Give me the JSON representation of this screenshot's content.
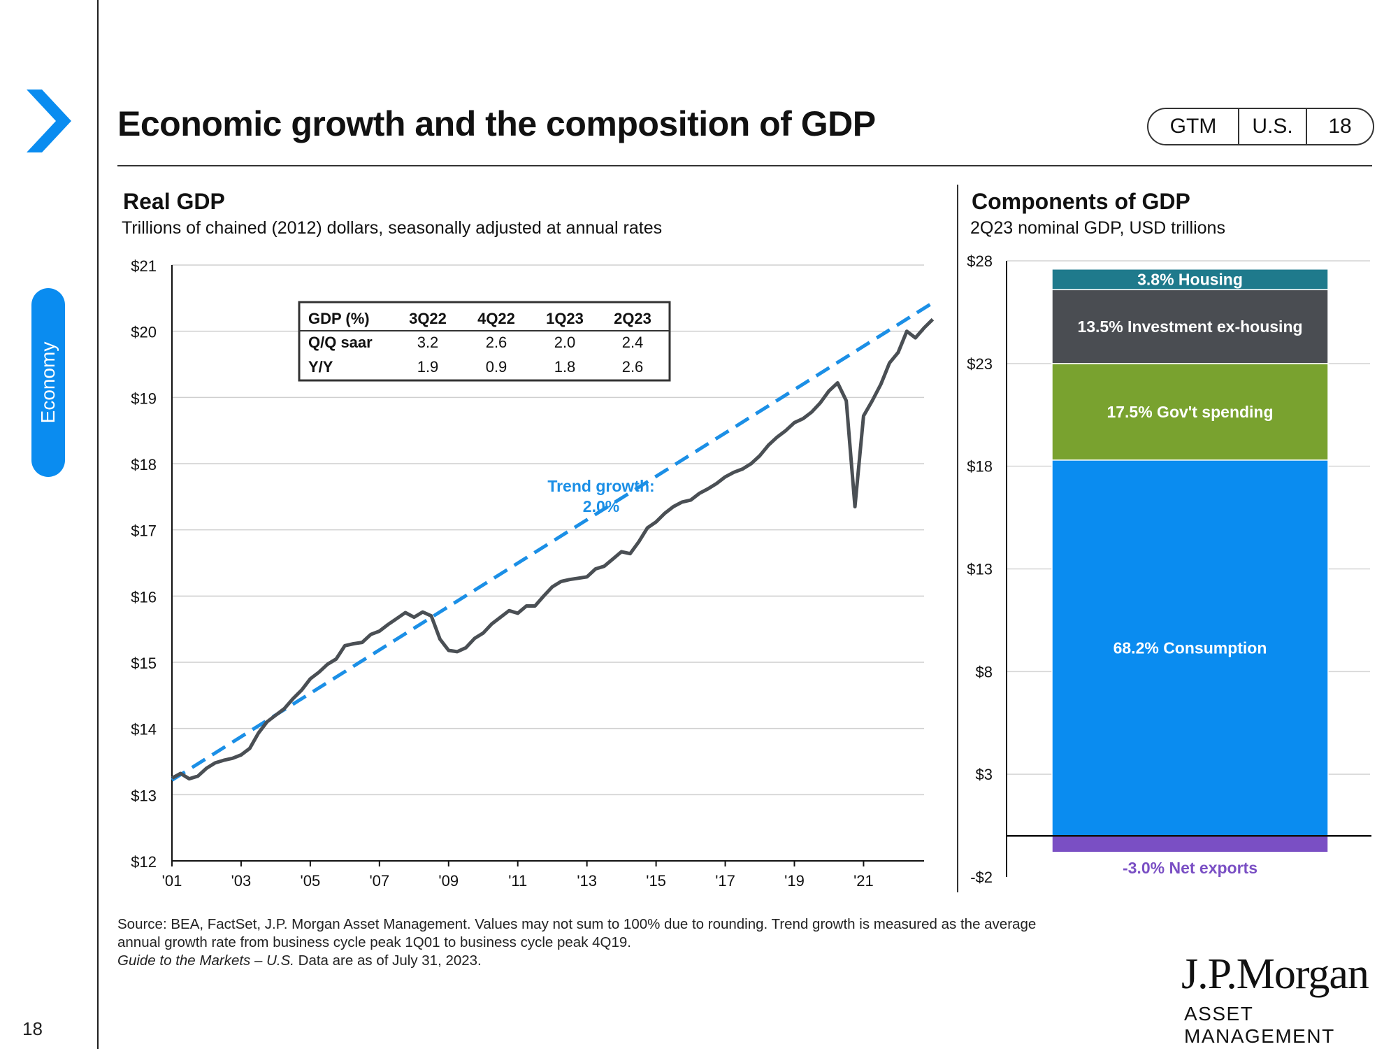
{
  "header": {
    "title": "Economic growth and the composition of GDP",
    "tags": [
      "GTM",
      "U.S.",
      "18"
    ]
  },
  "sidebar": {
    "section": "Economy",
    "page_number": "18"
  },
  "left_chart": {
    "title": "Real GDP",
    "subtitle": "Trillions of chained (2012) dollars, seasonally adjusted at annual rates"
  },
  "right_chart": {
    "title": "Components of GDP",
    "subtitle": "2Q23 nominal GDP, USD trillions"
  },
  "gdp_table": {
    "headers": [
      "GDP (%)",
      "3Q22",
      "4Q22",
      "1Q23",
      "2Q23"
    ],
    "rows": [
      {
        "label": "Q/Q saar",
        "values": [
          "3.2",
          "2.6",
          "2.0",
          "2.4"
        ]
      },
      {
        "label": "Y/Y",
        "values": [
          "1.9",
          "0.9",
          "1.8",
          "2.6"
        ]
      }
    ]
  },
  "trend_label": [
    "Trend growth:",
    "2.0%"
  ],
  "source": {
    "line1": "Source: BEA, FactSet, J.P. Morgan Asset Management. Values may not sum to 100% due to rounding. Trend growth is measured as the average",
    "line2": "annual growth rate from business cycle peak 1Q01 to business cycle peak 4Q19.",
    "line3_italic": "Guide to the Markets – U.S.",
    "line3_rest": " Data are as of July 31, 2023."
  },
  "brand": {
    "name": "J.P.Morgan",
    "sub": "ASSET MANAGEMENT"
  },
  "colors": {
    "accent": "#0a8cf0",
    "line": "#4a4f54",
    "trend": "#1b8fe6",
    "housing": "#1f7a8c",
    "investment": "#4a4d52",
    "government": "#79a22f",
    "consumption": "#0a8cf0",
    "net_exports": "#7a4fc4"
  },
  "chart_data": [
    {
      "type": "line",
      "title": "Real GDP",
      "ylabel": "Trillions of chained (2012) dollars, seasonally adjusted at annual rates",
      "ylim": [
        12,
        21
      ],
      "yticks": [
        12,
        13,
        14,
        15,
        16,
        17,
        18,
        19,
        20,
        21
      ],
      "ytick_labels": [
        "$12",
        "$13",
        "$14",
        "$15",
        "$16",
        "$17",
        "$18",
        "$19",
        "$20",
        "$21"
      ],
      "xlim": [
        2001,
        2022.75
      ],
      "xticks": [
        2001,
        2003,
        2005,
        2007,
        2009,
        2011,
        2013,
        2015,
        2017,
        2019,
        2021
      ],
      "xtick_labels": [
        "'01",
        "'03",
        "'05",
        "'07",
        "'09",
        "'11",
        "'13",
        "'15",
        "'17",
        "'19",
        "'21"
      ],
      "grid": true,
      "series": [
        {
          "name": "Real GDP",
          "points": [
            [
              2001.0,
              13.25
            ],
            [
              2001.25,
              13.32
            ],
            [
              2001.5,
              13.24
            ],
            [
              2001.75,
              13.28
            ],
            [
              2002.0,
              13.4
            ],
            [
              2002.25,
              13.48
            ],
            [
              2002.5,
              13.52
            ],
            [
              2002.75,
              13.55
            ],
            [
              2003.0,
              13.6
            ],
            [
              2003.25,
              13.7
            ],
            [
              2003.5,
              13.93
            ],
            [
              2003.75,
              14.1
            ],
            [
              2004.0,
              14.2
            ],
            [
              2004.25,
              14.3
            ],
            [
              2004.5,
              14.45
            ],
            [
              2004.75,
              14.58
            ],
            [
              2005.0,
              14.75
            ],
            [
              2005.25,
              14.85
            ],
            [
              2005.5,
              14.97
            ],
            [
              2005.75,
              15.05
            ],
            [
              2006.0,
              15.25
            ],
            [
              2006.25,
              15.28
            ],
            [
              2006.5,
              15.3
            ],
            [
              2006.75,
              15.42
            ],
            [
              2007.0,
              15.47
            ],
            [
              2007.25,
              15.57
            ],
            [
              2007.5,
              15.66
            ],
            [
              2007.75,
              15.75
            ],
            [
              2008.0,
              15.68
            ],
            [
              2008.25,
              15.76
            ],
            [
              2008.5,
              15.7
            ],
            [
              2008.75,
              15.35
            ],
            [
              2009.0,
              15.18
            ],
            [
              2009.25,
              15.16
            ],
            [
              2009.5,
              15.22
            ],
            [
              2009.75,
              15.36
            ],
            [
              2010.0,
              15.44
            ],
            [
              2010.25,
              15.58
            ],
            [
              2010.5,
              15.68
            ],
            [
              2010.75,
              15.78
            ],
            [
              2011.0,
              15.74
            ],
            [
              2011.25,
              15.85
            ],
            [
              2011.5,
              15.85
            ],
            [
              2011.75,
              16.0
            ],
            [
              2012.0,
              16.14
            ],
            [
              2012.25,
              16.22
            ],
            [
              2012.5,
              16.25
            ],
            [
              2012.75,
              16.27
            ],
            [
              2013.0,
              16.29
            ],
            [
              2013.25,
              16.41
            ],
            [
              2013.5,
              16.45
            ],
            [
              2013.75,
              16.56
            ],
            [
              2014.0,
              16.67
            ],
            [
              2014.25,
              16.64
            ],
            [
              2014.5,
              16.82
            ],
            [
              2014.75,
              17.03
            ],
            [
              2015.0,
              17.12
            ],
            [
              2015.25,
              17.25
            ],
            [
              2015.5,
              17.35
            ],
            [
              2015.75,
              17.42
            ],
            [
              2016.0,
              17.45
            ],
            [
              2016.25,
              17.55
            ],
            [
              2016.5,
              17.62
            ],
            [
              2016.75,
              17.7
            ],
            [
              2017.0,
              17.8
            ],
            [
              2017.25,
              17.87
            ],
            [
              2017.5,
              17.92
            ],
            [
              2017.75,
              18.0
            ],
            [
              2018.0,
              18.12
            ],
            [
              2018.25,
              18.28
            ],
            [
              2018.5,
              18.4
            ],
            [
              2018.75,
              18.5
            ],
            [
              2019.0,
              18.62
            ],
            [
              2019.25,
              18.68
            ],
            [
              2019.5,
              18.78
            ],
            [
              2019.75,
              18.92
            ],
            [
              2020.0,
              19.1
            ],
            [
              2020.25,
              19.22
            ],
            [
              2020.5,
              18.95
            ],
            [
              2020.75,
              17.35
            ],
            [
              2021.0,
              18.72
            ],
            [
              2021.25,
              18.95
            ],
            [
              2021.5,
              19.2
            ],
            [
              2021.75,
              19.52
            ],
            [
              2022.0,
              19.68
            ],
            [
              2022.25,
              20.0
            ],
            [
              2022.5,
              19.9
            ],
            [
              2022.75,
              20.05
            ],
            [
              2023.0,
              20.18
            ]
          ]
        },
        {
          "name": "Trend growth: 2.0%",
          "style": "dashed",
          "points": [
            [
              2001.0,
              13.22
            ],
            [
              2023.0,
              20.43
            ]
          ]
        }
      ]
    },
    {
      "type": "bar",
      "stacked": true,
      "title": "Components of GDP",
      "ylabel": "2Q23 nominal GDP, USD trillions",
      "ylim": [
        -2,
        28
      ],
      "yticks": [
        -2,
        3,
        8,
        13,
        18,
        23,
        28
      ],
      "ytick_labels": [
        "-$2",
        "$3",
        "$8",
        "$13",
        "$18",
        "$23",
        "$28"
      ],
      "categories": [
        "2Q23"
      ],
      "series": [
        {
          "name": "Net exports",
          "share": "-3.0%",
          "label": "-3.0%  Net exports",
          "start": -0.8,
          "end": 0.0,
          "color_key": "net_exports"
        },
        {
          "name": "Consumption",
          "share": "68.2%",
          "label": "68.2% Consumption",
          "start": 0.0,
          "end": 18.3,
          "color_key": "consumption"
        },
        {
          "name": "Gov't spending",
          "share": "17.5%",
          "label": "17.5% Gov't  spending",
          "start": 18.3,
          "end": 23.0,
          "color_key": "government"
        },
        {
          "name": "Investment ex-housing",
          "share": "13.5%",
          "label": "13.5% Investment ex-housing",
          "start": 23.0,
          "end": 26.6,
          "color_key": "investment"
        },
        {
          "name": "Housing",
          "share": "3.8%",
          "label": "3.8%  Housing",
          "start": 26.6,
          "end": 27.6,
          "color_key": "housing"
        }
      ]
    }
  ]
}
